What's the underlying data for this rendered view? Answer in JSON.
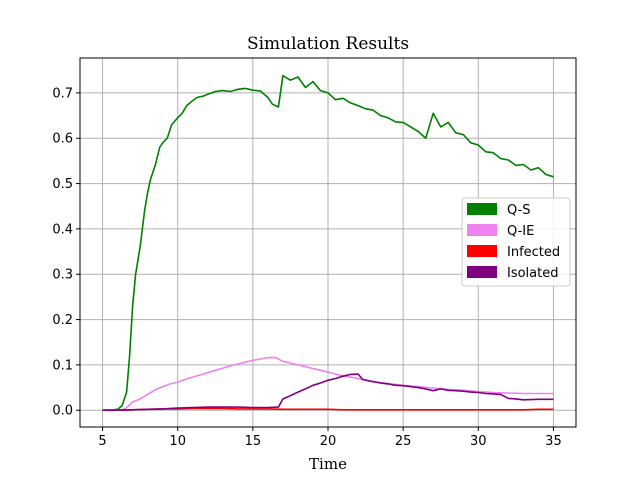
{
  "chart_data": {
    "type": "line",
    "title": "Simulation Results",
    "xlabel": "Time",
    "ylabel": "",
    "xlim": [
      3.5,
      36.5
    ],
    "ylim": [
      -0.037,
      0.777
    ],
    "xticks": [
      5,
      10,
      15,
      20,
      25,
      30,
      35
    ],
    "xtick_labels": [
      "5",
      "10",
      "15",
      "20",
      "25",
      "30",
      "35"
    ],
    "yticks": [
      0.0,
      0.1,
      0.2,
      0.3,
      0.4,
      0.5,
      0.6,
      0.7
    ],
    "ytick_labels": [
      "0.0",
      "0.1",
      "0.2",
      "0.3",
      "0.4",
      "0.5",
      "0.6",
      "0.7"
    ],
    "grid": true,
    "legend_position": "center-right",
    "series": [
      {
        "name": "Q-S",
        "color": "#008000",
        "x": [
          5,
          5.5,
          6,
          6.3,
          6.6,
          6.8,
          7,
          7.2,
          7.5,
          7.8,
          8,
          8.2,
          8.5,
          8.8,
          9,
          9.3,
          9.6,
          10,
          10.3,
          10.6,
          11,
          11.3,
          11.7,
          12,
          12.5,
          13,
          13.5,
          14,
          14.5,
          15,
          15.5,
          16,
          16.3,
          16.7,
          17,
          17.5,
          18,
          18.5,
          19,
          19.5,
          20,
          20.5,
          21,
          21.5,
          22,
          22.5,
          23,
          23.5,
          24,
          24.5,
          25,
          25.5,
          26,
          26.5,
          27,
          27.5,
          28,
          28.5,
          29,
          29.5,
          30,
          30.5,
          31,
          31.5,
          32,
          32.5,
          33,
          33.5,
          34,
          34.5,
          35
        ],
        "values": [
          0.0,
          0.0,
          0.002,
          0.01,
          0.04,
          0.12,
          0.23,
          0.3,
          0.36,
          0.44,
          0.48,
          0.51,
          0.54,
          0.58,
          0.59,
          0.6,
          0.63,
          0.645,
          0.655,
          0.672,
          0.683,
          0.69,
          0.693,
          0.697,
          0.703,
          0.705,
          0.703,
          0.708,
          0.71,
          0.706,
          0.704,
          0.69,
          0.675,
          0.669,
          0.738,
          0.728,
          0.735,
          0.712,
          0.725,
          0.705,
          0.7,
          0.685,
          0.688,
          0.678,
          0.672,
          0.665,
          0.662,
          0.65,
          0.645,
          0.636,
          0.635,
          0.625,
          0.615,
          0.6,
          0.655,
          0.625,
          0.635,
          0.612,
          0.608,
          0.59,
          0.585,
          0.57,
          0.568,
          0.555,
          0.552,
          0.54,
          0.542,
          0.53,
          0.535,
          0.52,
          0.515
        ]
      },
      {
        "name": "Q-IE",
        "color": "#ee82ee",
        "x": [
          5,
          5.5,
          6,
          6.5,
          7,
          7.5,
          8,
          8.5,
          9,
          9.5,
          10,
          10.5,
          11,
          11.5,
          12,
          12.5,
          13,
          13.5,
          14,
          14.5,
          15,
          15.5,
          16,
          16.5,
          17,
          17.5,
          18,
          18.5,
          19,
          19.5,
          20,
          20.5,
          21,
          21.5,
          22,
          22.5,
          23,
          23.5,
          24,
          24.5,
          25,
          26,
          27,
          28,
          29,
          30,
          31,
          32,
          33,
          34,
          35
        ],
        "values": [
          0.0,
          0.0,
          0.0,
          0.003,
          0.018,
          0.025,
          0.035,
          0.045,
          0.052,
          0.058,
          0.062,
          0.068,
          0.073,
          0.078,
          0.083,
          0.088,
          0.093,
          0.098,
          0.102,
          0.106,
          0.11,
          0.113,
          0.116,
          0.116,
          0.108,
          0.104,
          0.1,
          0.096,
          0.092,
          0.088,
          0.084,
          0.08,
          0.076,
          0.073,
          0.07,
          0.066,
          0.063,
          0.061,
          0.059,
          0.057,
          0.055,
          0.052,
          0.049,
          0.046,
          0.044,
          0.041,
          0.039,
          0.038,
          0.037,
          0.037,
          0.037
        ]
      },
      {
        "name": "Infected",
        "color": "#ff0000",
        "x": [
          5,
          6,
          7,
          8,
          9,
          10,
          11,
          12,
          13,
          14,
          15,
          16,
          17,
          18,
          19,
          20,
          21,
          22,
          23,
          24,
          25,
          26,
          27,
          28,
          29,
          30,
          31,
          32,
          33,
          34,
          35
        ],
        "values": [
          0.0,
          0.0,
          0.001,
          0.002,
          0.003,
          0.003,
          0.004,
          0.004,
          0.004,
          0.003,
          0.003,
          0.003,
          0.002,
          0.002,
          0.002,
          0.002,
          0.001,
          0.001,
          0.001,
          0.001,
          0.001,
          0.001,
          0.001,
          0.001,
          0.001,
          0.001,
          0.001,
          0.001,
          0.001,
          0.002,
          0.002
        ]
      },
      {
        "name": "Isolated",
        "color": "#800080",
        "x": [
          5,
          6,
          7,
          8,
          9,
          10,
          11,
          12,
          13,
          14,
          15,
          16,
          16.7,
          17,
          17.5,
          18,
          18.5,
          19,
          19.5,
          20,
          20.5,
          21,
          21.5,
          22,
          22.3,
          23,
          23.5,
          24,
          24.5,
          25,
          26,
          26.5,
          27,
          27.5,
          28,
          28.5,
          29,
          29.5,
          30,
          30.5,
          31,
          31.5,
          32,
          32.5,
          33,
          34,
          35
        ],
        "values": [
          0.0,
          0.0,
          0.001,
          0.002,
          0.003,
          0.005,
          0.006,
          0.007,
          0.007,
          0.007,
          0.006,
          0.006,
          0.007,
          0.025,
          0.032,
          0.04,
          0.047,
          0.055,
          0.06,
          0.066,
          0.07,
          0.075,
          0.079,
          0.08,
          0.068,
          0.063,
          0.06,
          0.058,
          0.055,
          0.054,
          0.05,
          0.047,
          0.043,
          0.047,
          0.044,
          0.043,
          0.042,
          0.04,
          0.039,
          0.037,
          0.036,
          0.035,
          0.026,
          0.025,
          0.023,
          0.024,
          0.024
        ]
      }
    ]
  }
}
